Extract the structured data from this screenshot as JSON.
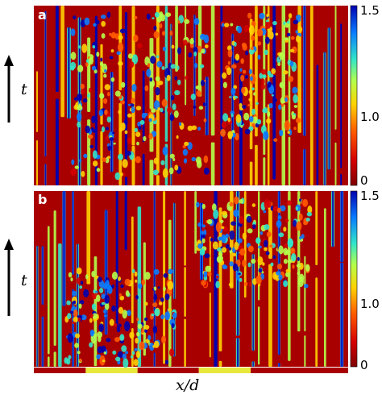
{
  "chart_data": [
    {
      "type": "heatmap",
      "panel_label": "a",
      "xlabel": "x/d",
      "ylabel": "t",
      "colorbar": {
        "ticks": [
          "0",
          "1.0",
          "1.5"
        ],
        "range": [
          0,
          1.5
        ]
      },
      "pattern": "vertical streaks; dense clusters in middle regions"
    },
    {
      "type": "heatmap",
      "panel_label": "b",
      "xlabel": "x/d",
      "ylabel": "t",
      "colorbar": {
        "ticks": [
          "0",
          "1.0",
          "1.5"
        ],
        "range": [
          0,
          1.5
        ]
      },
      "pattern": "vertical streaks; dense clusters over two patterned regions"
    }
  ],
  "bottom_bar": {
    "segments": [
      {
        "color": "#a80000",
        "length": 0.165
      },
      {
        "color": "#e8e83c",
        "length": 0.165
      },
      {
        "color": "#a80000",
        "length": 0.195
      },
      {
        "color": "#e8e83c",
        "length": 0.165
      },
      {
        "color": "#a80000",
        "length": 0.31
      }
    ]
  },
  "colors": {
    "background": "#a80000",
    "colormap": [
      "#800000",
      "#d40000",
      "#ff5a00",
      "#ffd200",
      "#b4ff4a",
      "#32e6c8",
      "#0a7cff",
      "#0000b0"
    ]
  }
}
